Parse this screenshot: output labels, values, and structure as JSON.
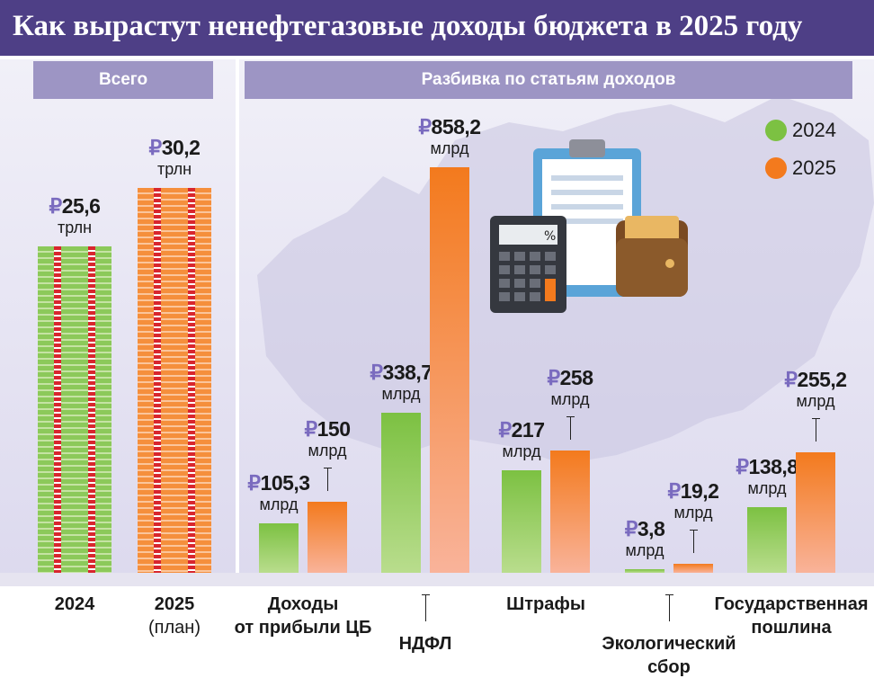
{
  "title": "Как вырастут ненефтегазовые доходы бюджета в 2025 году",
  "headers": {
    "total": "Всего",
    "breakdown": "Разбивка по статьям доходов"
  },
  "legend": [
    {
      "label": "2024",
      "color": "#7cc142"
    },
    {
      "label": "2025",
      "color": "#f37a1d"
    }
  ],
  "chart_data": [
    {
      "type": "bar",
      "categories": [
        "2024",
        "2025"
      ],
      "category_sublabels": [
        "",
        "(план)"
      ],
      "values": [
        25.6,
        30.2
      ],
      "value_labels": [
        "₽25,6",
        "₽30,2"
      ],
      "unit": "трлн",
      "colors": [
        "#7cc142",
        "#f37a1d"
      ]
    },
    {
      "type": "bar",
      "categories": [
        "Доходы от прибыли ЦБ",
        "НДФЛ",
        "Штрафы",
        "Экологический сбор",
        "Государственная пошлина"
      ],
      "unit": "млрд",
      "series": [
        {
          "name": "2024",
          "color": "#7cc142",
          "values": [
            105.3,
            338.7,
            217,
            3.8,
            138.8
          ],
          "labels": [
            "₽105,3",
            "₽338,7",
            "₽217",
            "₽3,8",
            "₽138,8"
          ]
        },
        {
          "name": "2025",
          "color": "#f37a1d",
          "values": [
            150,
            858.2,
            258,
            19.2,
            255.2
          ],
          "labels": [
            "₽150",
            "₽858,2",
            "₽258",
            "₽19,2",
            "₽255,2"
          ]
        }
      ]
    }
  ]
}
